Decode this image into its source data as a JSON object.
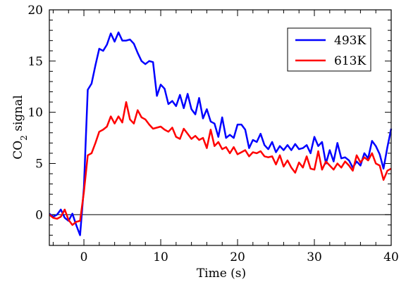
{
  "chart_data": {
    "type": "line",
    "xlabel": "Time (s)",
    "ylabel_main": "CO",
    "ylabel_sub": "2",
    "ylabel_tail": " signal",
    "xlim": [
      -4.5,
      40
    ],
    "ylim": [
      -3,
      20
    ],
    "xticks": [
      0,
      10,
      20,
      30,
      40
    ],
    "yticks": [
      0,
      5,
      10,
      15,
      20
    ],
    "x_minor_step": 2,
    "y_minor_step": 1,
    "grid": false,
    "zero_line": true,
    "legend_position": "top-right",
    "series": [
      {
        "name": "493K",
        "color": "#0000ff",
        "x": [
          -4.5,
          -4,
          -3.5,
          -3,
          -2.5,
          -2,
          -1.5,
          -1,
          -0.5,
          0,
          0.5,
          1,
          1.5,
          2,
          2.5,
          3,
          3.5,
          4,
          4.5,
          5,
          5.5,
          6,
          6.5,
          7,
          7.5,
          8,
          8.5,
          9,
          9.5,
          10,
          10.5,
          11,
          11.5,
          12,
          12.5,
          13,
          13.5,
          14,
          14.5,
          15,
          15.5,
          16,
          16.5,
          17,
          17.5,
          18,
          18.5,
          19,
          19.5,
          20,
          20.5,
          21,
          21.5,
          22,
          22.5,
          23,
          23.5,
          24,
          24.5,
          25,
          25.5,
          26,
          26.5,
          27,
          27.5,
          28,
          28.5,
          29,
          29.5,
          30,
          30.5,
          31,
          31.5,
          32,
          32.5,
          33,
          33.5,
          34,
          34.5,
          35,
          35.5,
          36,
          36.5,
          37,
          37.5,
          38,
          38.5,
          39,
          39.5,
          40
        ],
        "y": [
          0.1,
          -0.2,
          0.0,
          0.5,
          -0.3,
          -0.6,
          0.1,
          -1.0,
          -2.0,
          2.6,
          12.2,
          12.8,
          14.6,
          16.2,
          16.0,
          16.6,
          17.7,
          16.9,
          17.8,
          17.0,
          17.0,
          17.1,
          16.7,
          15.8,
          15.0,
          14.7,
          15.0,
          14.9,
          11.6,
          12.7,
          12.3,
          10.8,
          11.1,
          10.6,
          11.7,
          10.4,
          11.8,
          10.3,
          9.8,
          11.4,
          9.4,
          10.3,
          9.1,
          8.9,
          7.6,
          9.5,
          7.5,
          7.8,
          7.5,
          8.8,
          8.8,
          8.3,
          6.5,
          7.3,
          7.1,
          7.9,
          6.8,
          6.4,
          7.1,
          6.1,
          6.7,
          6.3,
          6.8,
          6.3,
          6.9,
          6.4,
          6.5,
          6.8,
          6.0,
          7.6,
          6.7,
          7.1,
          5.0,
          6.3,
          5.2,
          7.0,
          5.5,
          5.6,
          5.3,
          4.6,
          5.2,
          4.8,
          6.0,
          5.5,
          7.2,
          6.7,
          5.9,
          4.5,
          6.6,
          8.4
        ]
      },
      {
        "name": "613K",
        "color": "#ff0000",
        "x": [
          -4.5,
          -4,
          -3.5,
          -3,
          -2.5,
          -2,
          -1.5,
          -1,
          -0.5,
          0,
          0.5,
          1,
          1.5,
          2,
          2.5,
          3,
          3.5,
          4,
          4.5,
          5,
          5.5,
          6,
          6.5,
          7,
          7.5,
          8,
          8.5,
          9,
          9.5,
          10,
          10.5,
          11,
          11.5,
          12,
          12.5,
          13,
          13.5,
          14,
          14.5,
          15,
          15.5,
          16,
          16.5,
          17,
          17.5,
          18,
          18.5,
          19,
          19.5,
          20,
          20.5,
          21,
          21.5,
          22,
          22.5,
          23,
          23.5,
          24,
          24.5,
          25,
          25.5,
          26,
          26.5,
          27,
          27.5,
          28,
          28.5,
          29,
          29.5,
          30,
          30.5,
          31,
          31.5,
          32,
          32.5,
          33,
          33.5,
          34,
          34.5,
          35,
          35.5,
          36,
          36.5,
          37,
          37.5,
          38,
          38.5,
          39,
          39.5,
          40
        ],
        "y": [
          0.0,
          -0.3,
          -0.4,
          -0.2,
          0.5,
          -0.5,
          -1.0,
          -0.7,
          -0.6,
          2.2,
          5.8,
          6.0,
          7.0,
          8.1,
          8.3,
          8.6,
          9.6,
          8.9,
          9.6,
          9.0,
          11.0,
          9.3,
          8.9,
          10.2,
          9.5,
          9.3,
          8.8,
          8.4,
          8.5,
          8.6,
          8.3,
          8.1,
          8.5,
          7.6,
          7.4,
          8.4,
          7.9,
          7.4,
          7.7,
          7.3,
          7.5,
          6.5,
          8.3,
          6.7,
          7.1,
          6.4,
          6.6,
          6.0,
          6.6,
          5.9,
          6.1,
          6.3,
          5.7,
          6.1,
          6.0,
          6.2,
          5.7,
          5.6,
          5.7,
          4.9,
          5.8,
          4.7,
          5.3,
          4.6,
          4.1,
          5.1,
          4.6,
          5.7,
          4.5,
          4.4,
          6.2,
          4.4,
          5.2,
          4.8,
          4.4,
          5.0,
          4.6,
          5.2,
          4.8,
          4.3,
          5.8,
          5.1,
          5.6,
          5.3,
          6.0,
          5.0,
          4.8,
          3.4,
          4.3,
          4.5
        ]
      }
    ]
  }
}
